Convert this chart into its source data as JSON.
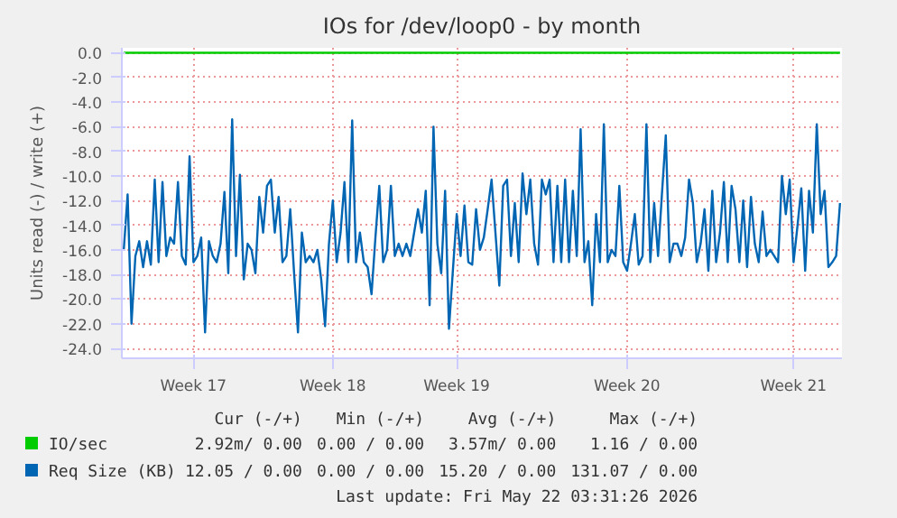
{
  "chart_data": {
    "type": "line",
    "title": "IOs for /dev/loop0 - by month",
    "ylabel": "Units read (-) / write (+)",
    "categories": [
      null,
      null,
      null,
      null,
      null,
      null,
      null,
      null,
      null,
      null,
      null,
      null,
      null,
      null,
      null,
      null,
      null,
      null,
      "Week 17",
      null,
      null,
      null,
      null,
      null,
      null,
      null,
      null,
      null,
      null,
      null,
      null,
      null,
      null,
      null,
      null,
      null,
      null,
      null,
      null,
      null,
      null,
      null,
      null,
      null,
      null,
      null,
      null,
      null,
      null,
      null,
      null,
      null,
      null,
      null,
      "Week 18",
      null,
      null,
      null,
      null,
      null,
      null,
      null,
      null,
      null,
      null,
      null,
      null,
      null,
      null,
      null,
      null,
      null,
      null,
      null,
      null,
      null,
      null,
      null,
      null,
      null,
      null,
      null,
      null,
      null,
      null,
      null,
      "Week 19",
      null,
      null,
      null,
      null,
      null,
      null,
      null,
      null,
      null,
      null,
      null,
      null,
      null,
      null,
      null,
      null,
      null,
      null,
      null,
      null,
      null,
      null,
      null,
      null,
      null,
      null,
      null,
      null,
      null,
      null,
      null,
      null,
      null,
      null,
      null,
      null,
      null,
      null,
      null,
      null,
      null,
      null,
      null,
      "Week 20",
      null,
      null,
      null,
      null,
      null,
      null,
      null,
      null,
      null,
      null,
      null,
      null,
      null,
      null,
      null,
      null,
      null,
      null,
      null,
      null,
      null,
      null,
      null,
      null,
      null,
      null,
      null,
      null,
      null,
      null,
      null,
      null,
      null,
      null,
      null,
      null,
      null,
      null,
      null,
      null,
      null,
      null,
      "Week 21",
      null,
      null,
      null,
      null,
      null,
      null,
      null,
      null,
      null,
      null,
      null,
      null
    ],
    "ylim": [
      -24.8,
      0.4
    ],
    "yticks": [
      {
        "value": 0,
        "label": "0.0"
      },
      {
        "value": -2,
        "label": "-2.0"
      },
      {
        "value": -4,
        "label": "-4.0"
      },
      {
        "value": -6,
        "label": "-6.0"
      },
      {
        "value": -8,
        "label": "-8.0"
      },
      {
        "value": -10,
        "label": "-10.0"
      },
      {
        "value": -12,
        "label": "-12.0"
      },
      {
        "value": -14,
        "label": "-14.0"
      },
      {
        "value": -16,
        "label": "-16.0"
      },
      {
        "value": -18,
        "label": "-18.0"
      },
      {
        "value": -20,
        "label": "-20.0"
      },
      {
        "value": -22,
        "label": "-22.0"
      },
      {
        "value": -24,
        "label": "-24.0"
      }
    ],
    "grid": true,
    "legend": "bottom",
    "series": [
      {
        "name": "IO/sec",
        "color": "#00cc00",
        "values": [
          0,
          0,
          0,
          0,
          0,
          0,
          0,
          0,
          0,
          0,
          0,
          0,
          0,
          0,
          0,
          0,
          0,
          0,
          0,
          0,
          0,
          0,
          0,
          0,
          0,
          0,
          0,
          0,
          0,
          0,
          0,
          0,
          0,
          0,
          0,
          0,
          0,
          0,
          0,
          0,
          0,
          0,
          0,
          0,
          0,
          0,
          0,
          0,
          0,
          0,
          0,
          0,
          0,
          0,
          0,
          0,
          0,
          0,
          0,
          0,
          0,
          0,
          0,
          0,
          0,
          0,
          0,
          0,
          0,
          0,
          0,
          0,
          0,
          0,
          0,
          0,
          0,
          0,
          0,
          0,
          0,
          0,
          0,
          0,
          0,
          0,
          0,
          0,
          0,
          0,
          0,
          0,
          0,
          0,
          0,
          0,
          0,
          0,
          0,
          0,
          0,
          0,
          0,
          0,
          0,
          0,
          0,
          0,
          0,
          0,
          0,
          0,
          0,
          0,
          0,
          0,
          0,
          0,
          0,
          0,
          0,
          0,
          0,
          0,
          0,
          0,
          0,
          0,
          0,
          0,
          0,
          0,
          0,
          0,
          0,
          0,
          0,
          0,
          0,
          0,
          0,
          0,
          0,
          0,
          0,
          0,
          0,
          0,
          0,
          0,
          0,
          0,
          0,
          0,
          0,
          0,
          0,
          0,
          0,
          0,
          0,
          0,
          0,
          0,
          0,
          0,
          0,
          0,
          0,
          0,
          0,
          0,
          0,
          0,
          0,
          0,
          0,
          0,
          0,
          0,
          0,
          0,
          0,
          0,
          0,
          0
        ]
      },
      {
        "name": "Req Size (KB)",
        "color": "#0066b3",
        "values": [
          -16.0,
          -11.5,
          -22.0,
          -16.5,
          -15.3,
          -17.4,
          -15.3,
          -17.2,
          -10.3,
          -17.0,
          -10.5,
          -16.5,
          -15.0,
          -15.5,
          -10.5,
          -16.5,
          -17.2,
          -8.4,
          -17.0,
          -16.5,
          -15.0,
          -22.7,
          -15.3,
          -16.5,
          -17.0,
          -15.5,
          -11.3,
          -17.9,
          -5.4,
          -16.5,
          -9.9,
          -18.4,
          -15.5,
          -16.0,
          -17.9,
          -11.7,
          -14.6,
          -10.8,
          -10.3,
          -14.6,
          -11.7,
          -17.0,
          -16.5,
          -12.7,
          -17.9,
          -22.7,
          -14.6,
          -17.0,
          -16.5,
          -17.0,
          -16.0,
          -18.4,
          -22.2,
          -15.5,
          -12.0,
          -17.0,
          -14.6,
          -10.5,
          -17.0,
          -5.5,
          -17.0,
          -14.6,
          -17.0,
          -17.4,
          -19.6,
          -15.0,
          -10.8,
          -17.0,
          -16.0,
          -10.8,
          -16.5,
          -15.5,
          -16.5,
          -15.5,
          -16.5,
          -14.6,
          -12.7,
          -14.6,
          -11.2,
          -20.5,
          -6.0,
          -15.5,
          -17.9,
          -11.2,
          -22.4,
          -17.7,
          -13.1,
          -16.5,
          -12.4,
          -17.0,
          -17.2,
          -12.7,
          -16.0,
          -15.0,
          -12.7,
          -10.3,
          -14.6,
          -18.9,
          -10.8,
          -10.3,
          -16.5,
          -12.2,
          -17.0,
          -9.8,
          -13.1,
          -10.3,
          -15.5,
          -17.2,
          -10.3,
          -11.5,
          -10.3,
          -17.0,
          -10.8,
          -17.0,
          -10.3,
          -17.0,
          -11.2,
          -16.5,
          -6.2,
          -17.0,
          -15.3,
          -20.5,
          -13.1,
          -17.0,
          -5.8,
          -17.0,
          -16.0,
          -16.5,
          -10.8,
          -17.0,
          -17.7,
          -15.5,
          -13.1,
          -17.2,
          -16.5,
          -5.8,
          -17.0,
          -12.2,
          -16.5,
          -11.5,
          -6.7,
          -17.0,
          -15.5,
          -15.5,
          -16.5,
          -15.0,
          -10.3,
          -12.2,
          -17.0,
          -15.5,
          -12.7,
          -17.7,
          -11.2,
          -17.0,
          -14.6,
          -10.5,
          -17.0,
          -10.8,
          -12.7,
          -17.0,
          -12.0,
          -17.4,
          -11.7,
          -15.5,
          -17.0,
          -12.9,
          -16.5,
          -16.0,
          -16.5,
          -17.0,
          -10.0,
          -13.1,
          -10.3,
          -17.0,
          -14.1,
          -11.0,
          -17.7,
          -11.2,
          -14.6,
          -5.8,
          -13.1,
          -11.2,
          -17.4,
          -17.0,
          -16.5,
          -12.2
        ]
      }
    ],
    "annotations": [
      "Cur (-/+)",
      "Min (-/+)",
      "Avg (-/+)",
      "Max (-/+)",
      "2.92m/ 0.00",
      "0.00 / 0.00",
      "3.57m/ 0.00",
      "1.16 / 0.00",
      "12.05 / 0.00",
      "0.00 / 0.00",
      "15.20 / 0.00",
      "131.07 / 0.00",
      "Last update: Fri May 22 03:31:26 2026"
    ]
  }
}
